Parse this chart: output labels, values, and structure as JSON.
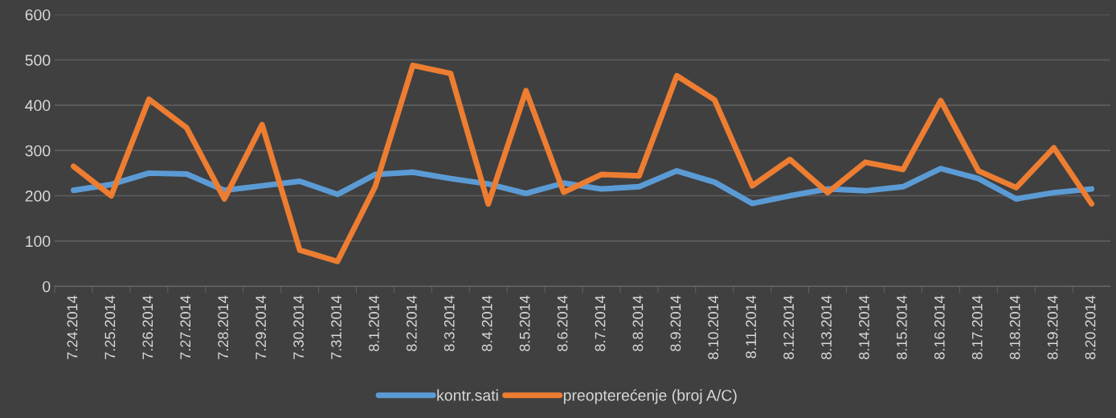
{
  "chart_data": {
    "type": "line",
    "categories": [
      "7.24.2014",
      "7.25.2014",
      "7.26.2014",
      "7.27.2014",
      "7.28.2014",
      "7.29.2014",
      "7.30.2014",
      "7.31.2014",
      "8.1.2014",
      "8.2.2014",
      "8.3.2014",
      "8.4.2014",
      "8.5.2014",
      "8.6.2014",
      "8.7.2014",
      "8.8.2014",
      "8.9.2014",
      "8.10.2014",
      "8.11.2014",
      "8.12.2014",
      "8.13.2014",
      "8.14.2014",
      "8.15.2014",
      "8.16.2014",
      "8.17.2014",
      "8.18.2014",
      "8.19.2014",
      "8.20.2014"
    ],
    "series": [
      {
        "name": "kontr.sati",
        "color": "#5b9bd5",
        "values": [
          212,
          225,
          250,
          248,
          212,
          222,
          232,
          203,
          247,
          252,
          238,
          226,
          205,
          228,
          215,
          220,
          255,
          230,
          183,
          200,
          215,
          211,
          220,
          260,
          238,
          193,
          207,
          215
        ]
      },
      {
        "name": "preopterećenje (broj A/C)",
        "color": "#ed7d31",
        "values": [
          265,
          200,
          413,
          350,
          193,
          357,
          80,
          55,
          220,
          488,
          470,
          182,
          432,
          208,
          247,
          244,
          465,
          412,
          222,
          280,
          207,
          274,
          258,
          410,
          255,
          218,
          306,
          182
        ]
      }
    ],
    "ylim": [
      0,
      600
    ],
    "yticks": [
      0,
      100,
      200,
      300,
      400,
      500,
      600
    ],
    "grid": "y",
    "legend": "bottom",
    "marker": "none",
    "line_style": "solid"
  }
}
